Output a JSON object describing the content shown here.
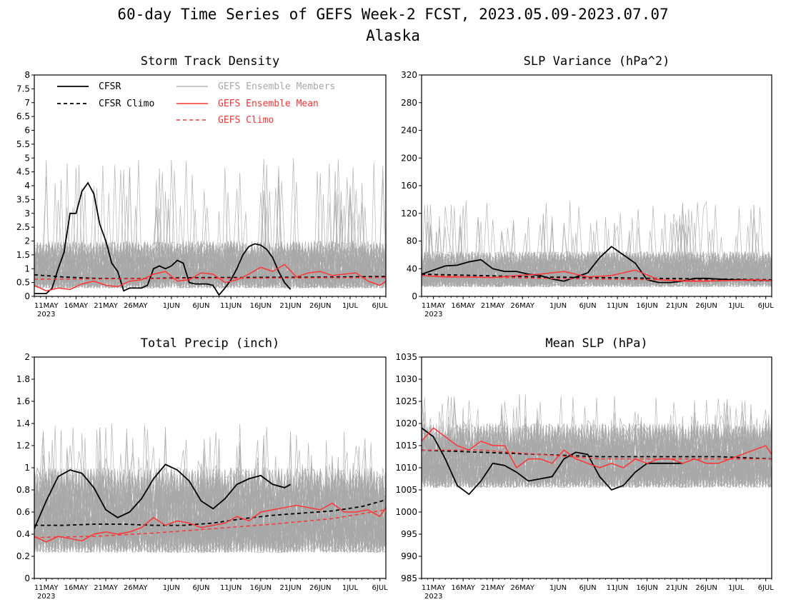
{
  "figure": {
    "title": "60-day Time Series of GEFS Week-2 FCST, 2023.05.09-2023.07.07",
    "subtitle": "Alaska"
  },
  "x_axis": {
    "tick_labels": [
      "11MAY",
      "16MAY",
      "21MAY",
      "26MAY",
      "1JUN",
      "6JUN",
      "11JUN",
      "16JUN",
      "21JUN",
      "26JUN",
      "1JUL",
      "6JUL"
    ],
    "tick_days": [
      2,
      7,
      12,
      17,
      23,
      28,
      33,
      38,
      43,
      48,
      53,
      58
    ],
    "year_label": "2023"
  },
  "legend": {
    "cfsr": "CFSR",
    "cfsr_climo": "CFSR Climo",
    "members": "GEFS Ensemble Members",
    "mean": "GEFS Ensemble Mean",
    "gefs_climo": "GEFS Climo"
  },
  "colors": {
    "cfsr": "#000000",
    "members": "#a8a8a8",
    "mean": "#ff3333",
    "legend_members_text": "#a8a8a8",
    "legend_mean_text": "#ff3333"
  },
  "chart_data": [
    {
      "type": "line",
      "title": "Storm Track Density",
      "ylim": [
        0,
        8
      ],
      "yticks": [
        "0",
        "0.5",
        "1",
        "1.5",
        "2",
        "2.5",
        "3",
        "3.5",
        "4",
        "4.5",
        "5",
        "5.5",
        "6",
        "6.5",
        "7",
        "7.5",
        "8"
      ],
      "x_range_days": [
        0,
        59
      ],
      "member_band": {
        "low": 0.0,
        "high": 2.0,
        "peak": 5.0
      },
      "series": [
        {
          "name": "CFSR",
          "style": "solid-black",
          "x": [
            0,
            2,
            3,
            4,
            5,
            6,
            7,
            8,
            9,
            10,
            11,
            12,
            13,
            14,
            15,
            16,
            17,
            18,
            19,
            20,
            21,
            22,
            23,
            24,
            25,
            26,
            27,
            28,
            29,
            30,
            31,
            32,
            33,
            34,
            35,
            36,
            37,
            38,
            39,
            40,
            41,
            42,
            43
          ],
          "y": [
            0.1,
            0.1,
            0.3,
            1.0,
            1.6,
            3.0,
            3.0,
            3.8,
            4.1,
            3.7,
            2.6,
            2.0,
            1.2,
            0.9,
            0.2,
            0.3,
            0.3,
            0.3,
            0.4,
            1.0,
            1.1,
            1.0,
            1.1,
            1.3,
            1.2,
            0.5,
            0.45,
            0.45,
            0.45,
            0.4,
            0.05,
            0.3,
            0.6,
            1.0,
            1.5,
            1.8,
            1.9,
            1.85,
            1.7,
            1.4,
            0.9,
            0.5,
            0.25
          ]
        },
        {
          "name": "CFSR Climo",
          "style": "dashed-black",
          "x": [
            0,
            5,
            10,
            15,
            20,
            25,
            30,
            35,
            40,
            45,
            50,
            55,
            59
          ],
          "y": [
            0.78,
            0.7,
            0.65,
            0.64,
            0.65,
            0.67,
            0.68,
            0.68,
            0.69,
            0.69,
            0.7,
            0.71,
            0.72
          ]
        },
        {
          "name": "GEFS Ensemble Mean",
          "style": "solid-red",
          "x": [
            0,
            2,
            4,
            6,
            8,
            10,
            12,
            14,
            16,
            18,
            20,
            22,
            24,
            26,
            28,
            30,
            32,
            34,
            36,
            38,
            40,
            42,
            44,
            46,
            48,
            50,
            52,
            54,
            56,
            58,
            59
          ],
          "y": [
            0.4,
            0.2,
            0.3,
            0.25,
            0.45,
            0.55,
            0.4,
            0.35,
            0.55,
            0.6,
            0.8,
            0.9,
            0.55,
            0.6,
            0.85,
            0.8,
            0.5,
            0.6,
            0.8,
            1.05,
            0.9,
            1.15,
            0.7,
            0.85,
            0.9,
            0.75,
            0.8,
            0.85,
            0.55,
            0.4,
            0.55
          ]
        },
        {
          "name": "GEFS Climo",
          "style": "dashed-red",
          "x": [
            0,
            10,
            20,
            30,
            40,
            50,
            59
          ],
          "y": [
            0.62,
            0.63,
            0.64,
            0.65,
            0.66,
            0.67,
            0.68
          ]
        }
      ]
    },
    {
      "type": "line",
      "title": "SLP Variance (hPa^2)",
      "ylim": [
        0,
        320
      ],
      "yticks": [
        "0",
        "40",
        "80",
        "120",
        "160",
        "200",
        "240",
        "280",
        "320"
      ],
      "x_range_days": [
        0,
        59
      ],
      "member_band": {
        "low": 5,
        "high": 65,
        "peak": 140
      },
      "series": [
        {
          "name": "CFSR",
          "style": "solid-black",
          "x": [
            0,
            2,
            4,
            6,
            8,
            10,
            12,
            14,
            16,
            18,
            20,
            22,
            24,
            26,
            28,
            30,
            32,
            34,
            36,
            38,
            40,
            42,
            44,
            46,
            48,
            50,
            52,
            54,
            56,
            58,
            59
          ],
          "y": [
            32,
            38,
            44,
            45,
            50,
            53,
            40,
            36,
            36,
            32,
            30,
            25,
            22,
            28,
            34,
            56,
            72,
            60,
            48,
            24,
            20,
            20,
            22,
            26,
            26,
            25,
            24,
            24,
            23,
            23,
            23
          ]
        },
        {
          "name": "CFSR Climo",
          "style": "dashed-black",
          "x": [
            0,
            10,
            20,
            30,
            40,
            50,
            59
          ],
          "y": [
            32,
            30,
            28,
            27,
            26,
            25,
            24
          ]
        },
        {
          "name": "GEFS Ensemble Mean",
          "style": "solid-red",
          "x": [
            0,
            4,
            8,
            12,
            16,
            20,
            24,
            28,
            32,
            36,
            40,
            44,
            48,
            52,
            56,
            59
          ],
          "y": [
            30,
            28,
            28,
            27,
            30,
            32,
            36,
            28,
            30,
            38,
            24,
            22,
            22,
            23,
            24,
            23
          ]
        },
        {
          "name": "GEFS Climo",
          "style": "dashed-red",
          "x": [
            0,
            10,
            20,
            30,
            40,
            50,
            59
          ],
          "y": [
            30,
            28,
            26,
            25,
            24,
            23,
            23
          ]
        }
      ]
    },
    {
      "type": "line",
      "title": "Total Precip (inch)",
      "ylim": [
        0,
        2
      ],
      "yticks": [
        "0",
        "0.2",
        "0.4",
        "0.6",
        "0.8",
        "1",
        "1.2",
        "1.4",
        "1.6",
        "1.8",
        "2"
      ],
      "x_range_days": [
        0,
        59
      ],
      "member_band": {
        "low": 0.1,
        "high": 1.0,
        "peak": 1.4
      },
      "series": [
        {
          "name": "CFSR",
          "style": "solid-black",
          "x": [
            0,
            2,
            4,
            6,
            8,
            10,
            12,
            14,
            16,
            18,
            20,
            22,
            24,
            26,
            28,
            30,
            32,
            34,
            36,
            38,
            40,
            42,
            43
          ],
          "y": [
            0.45,
            0.7,
            0.92,
            0.98,
            0.95,
            0.82,
            0.62,
            0.55,
            0.6,
            0.72,
            0.9,
            1.03,
            0.98,
            0.88,
            0.7,
            0.63,
            0.72,
            0.85,
            0.9,
            0.93,
            0.85,
            0.82,
            0.85
          ]
        },
        {
          "name": "CFSR Climo",
          "style": "dashed-black",
          "x": [
            0,
            5,
            10,
            15,
            20,
            25,
            30,
            35,
            40,
            45,
            50,
            55,
            59
          ],
          "y": [
            0.48,
            0.48,
            0.49,
            0.49,
            0.48,
            0.48,
            0.5,
            0.54,
            0.57,
            0.59,
            0.61,
            0.65,
            0.71
          ]
        },
        {
          "name": "GEFS Ensemble Mean",
          "style": "solid-red",
          "x": [
            0,
            2,
            4,
            6,
            8,
            10,
            12,
            14,
            16,
            18,
            20,
            22,
            24,
            26,
            28,
            30,
            32,
            34,
            36,
            38,
            40,
            42,
            44,
            46,
            48,
            50,
            52,
            54,
            56,
            58,
            59
          ],
          "y": [
            0.38,
            0.33,
            0.38,
            0.36,
            0.34,
            0.4,
            0.42,
            0.4,
            0.42,
            0.46,
            0.55,
            0.48,
            0.52,
            0.5,
            0.46,
            0.48,
            0.5,
            0.56,
            0.52,
            0.6,
            0.62,
            0.64,
            0.66,
            0.64,
            0.62,
            0.68,
            0.6,
            0.6,
            0.62,
            0.56,
            0.64
          ]
        },
        {
          "name": "GEFS Climo",
          "style": "dashed-red",
          "x": [
            0,
            10,
            20,
            30,
            40,
            50,
            59
          ],
          "y": [
            0.37,
            0.38,
            0.41,
            0.45,
            0.49,
            0.54,
            0.62
          ]
        }
      ]
    },
    {
      "type": "line",
      "title": "Mean SLP (hPa)",
      "ylim": [
        985,
        1035
      ],
      "yticks": [
        "985",
        "990",
        "995",
        "1000",
        "1005",
        "1010",
        "1015",
        "1020",
        "1025",
        "1030",
        "1035"
      ],
      "x_range_days": [
        0,
        59
      ],
      "member_band": {
        "low": 1003,
        "high": 1020,
        "peak": 1027
      },
      "series": [
        {
          "name": "CFSR",
          "style": "solid-black",
          "x": [
            0,
            2,
            4,
            6,
            8,
            10,
            12,
            14,
            16,
            18,
            20,
            22,
            24,
            26,
            28,
            30,
            32,
            34,
            36,
            38,
            40,
            42,
            44
          ],
          "y": [
            1019,
            1017,
            1012,
            1006,
            1004,
            1007,
            1011,
            1010.5,
            1009,
            1007,
            1007.5,
            1008,
            1012,
            1013.5,
            1013,
            1008,
            1005,
            1006,
            1009,
            1011,
            1011,
            1011,
            1011
          ]
        },
        {
          "name": "CFSR Climo",
          "style": "dashed-black",
          "x": [
            0,
            10,
            20,
            30,
            40,
            50,
            59
          ],
          "y": [
            1014,
            1013.5,
            1013,
            1012.5,
            1012.5,
            1012.5,
            1012
          ]
        },
        {
          "name": "GEFS Ensemble Mean",
          "style": "solid-red",
          "x": [
            0,
            2,
            4,
            6,
            8,
            10,
            12,
            14,
            16,
            18,
            20,
            22,
            24,
            26,
            28,
            30,
            32,
            34,
            36,
            38,
            40,
            42,
            44,
            46,
            48,
            50,
            52,
            54,
            56,
            58,
            59
          ],
          "y": [
            1016,
            1019,
            1017,
            1015,
            1014,
            1016,
            1015,
            1015,
            1010,
            1012,
            1012,
            1011,
            1014,
            1012,
            1011,
            1010,
            1011,
            1010,
            1012,
            1011,
            1012,
            1012,
            1011,
            1012,
            1011,
            1011,
            1012,
            1013,
            1014,
            1015,
            1013
          ]
        },
        {
          "name": "GEFS Climo",
          "style": "dashed-red",
          "x": [
            0,
            10,
            20,
            30,
            40,
            50,
            59
          ],
          "y": [
            1014,
            1014,
            1013,
            1012,
            1012,
            1012,
            1012
          ]
        }
      ]
    }
  ]
}
